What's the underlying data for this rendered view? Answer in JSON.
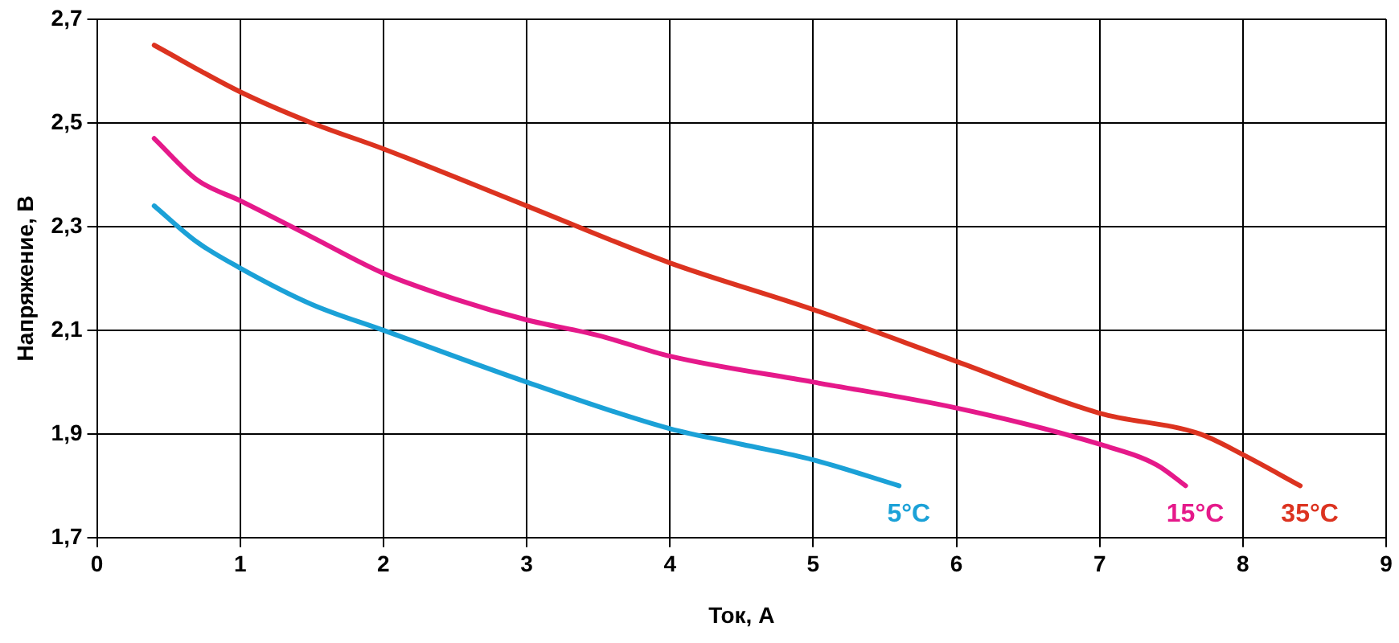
{
  "chart_data": {
    "type": "line",
    "xlabel": "Ток, А",
    "ylabel": "Напряжение, В",
    "xlim": [
      0,
      9
    ],
    "xticks": [
      0,
      1,
      2,
      3,
      4,
      5,
      6,
      7,
      8,
      9
    ],
    "ylim": [
      1.7,
      2.7
    ],
    "yticks": [
      {
        "value": 1.7,
        "label": "1,7"
      },
      {
        "value": 1.9,
        "label": "1,9"
      },
      {
        "value": 2.1,
        "label": "2,1"
      },
      {
        "value": 2.3,
        "label": "2,3"
      },
      {
        "value": 2.5,
        "label": "2,5"
      },
      {
        "value": 2.7,
        "label": "2,7"
      }
    ],
    "grid": true,
    "legend": false,
    "marker": "none",
    "line_style": "solid",
    "series": [
      {
        "name": "5°C",
        "color": "#1ba1d7",
        "x": [
          0.4,
          0.7,
          1,
          1.5,
          2,
          3,
          4,
          4.5,
          5,
          5.6
        ],
        "values": [
          2.34,
          2.27,
          2.22,
          2.15,
          2.1,
          2.0,
          1.91,
          1.88,
          1.85,
          1.8
        ]
      },
      {
        "name": "15°C",
        "color": "#e5198a",
        "x": [
          0.4,
          0.7,
          1,
          1.5,
          2,
          2.5,
          3,
          3.5,
          4,
          5,
          6,
          7,
          7.4,
          7.6
        ],
        "values": [
          2.47,
          2.39,
          2.35,
          2.28,
          2.21,
          2.16,
          2.12,
          2.09,
          2.05,
          2.0,
          1.95,
          1.88,
          1.84,
          1.8
        ]
      },
      {
        "name": "35°C",
        "color": "#dc3320",
        "x": [
          0.4,
          1,
          1.5,
          2,
          3,
          4,
          5,
          6,
          7,
          7.7,
          8,
          8.4
        ],
        "values": [
          2.65,
          2.56,
          2.5,
          2.45,
          2.34,
          2.23,
          2.14,
          2.04,
          1.94,
          1.9,
          1.86,
          1.8
        ]
      }
    ]
  }
}
